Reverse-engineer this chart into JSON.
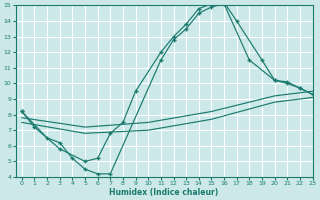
{
  "xlabel": "Humidex (Indice chaleur)",
  "xlim": [
    -0.5,
    23
  ],
  "ylim": [
    4,
    15
  ],
  "xticks": [
    0,
    1,
    2,
    3,
    4,
    5,
    6,
    7,
    8,
    9,
    10,
    11,
    12,
    13,
    14,
    15,
    16,
    17,
    18,
    19,
    20,
    21,
    22,
    23
  ],
  "yticks": [
    4,
    5,
    6,
    7,
    8,
    9,
    10,
    11,
    12,
    13,
    14,
    15
  ],
  "line_color": "#1a7a6e",
  "bg_color": "#cce8e8",
  "curve1_x": [
    0,
    1,
    3,
    5,
    6,
    7,
    8,
    9,
    11,
    12,
    13,
    14,
    15,
    16,
    17,
    19,
    20,
    21,
    22,
    23
  ],
  "curve1_y": [
    8.2,
    7.2,
    5.8,
    5.0,
    5.2,
    6.8,
    7.5,
    9.5,
    12.0,
    13.0,
    13.8,
    14.8,
    15.1,
    15.2,
    14.0,
    11.5,
    10.2,
    10.1,
    9.7,
    9.3
  ],
  "curve2_x": [
    0,
    2,
    3,
    4,
    5,
    6,
    7,
    11,
    12,
    13,
    14,
    15,
    16,
    18,
    20,
    21,
    22,
    23
  ],
  "curve2_y": [
    8.2,
    6.5,
    6.2,
    5.2,
    4.5,
    4.2,
    4.2,
    11.5,
    12.8,
    13.5,
    14.5,
    14.9,
    15.1,
    11.5,
    10.2,
    10.0,
    9.7,
    9.3
  ],
  "line3_x": [
    0,
    5,
    10,
    15,
    20,
    23
  ],
  "line3_y": [
    7.8,
    7.2,
    7.5,
    8.2,
    9.2,
    9.5
  ],
  "line4_x": [
    0,
    5,
    10,
    15,
    20,
    23
  ],
  "line4_y": [
    7.5,
    6.8,
    7.0,
    7.7,
    8.8,
    9.1
  ]
}
